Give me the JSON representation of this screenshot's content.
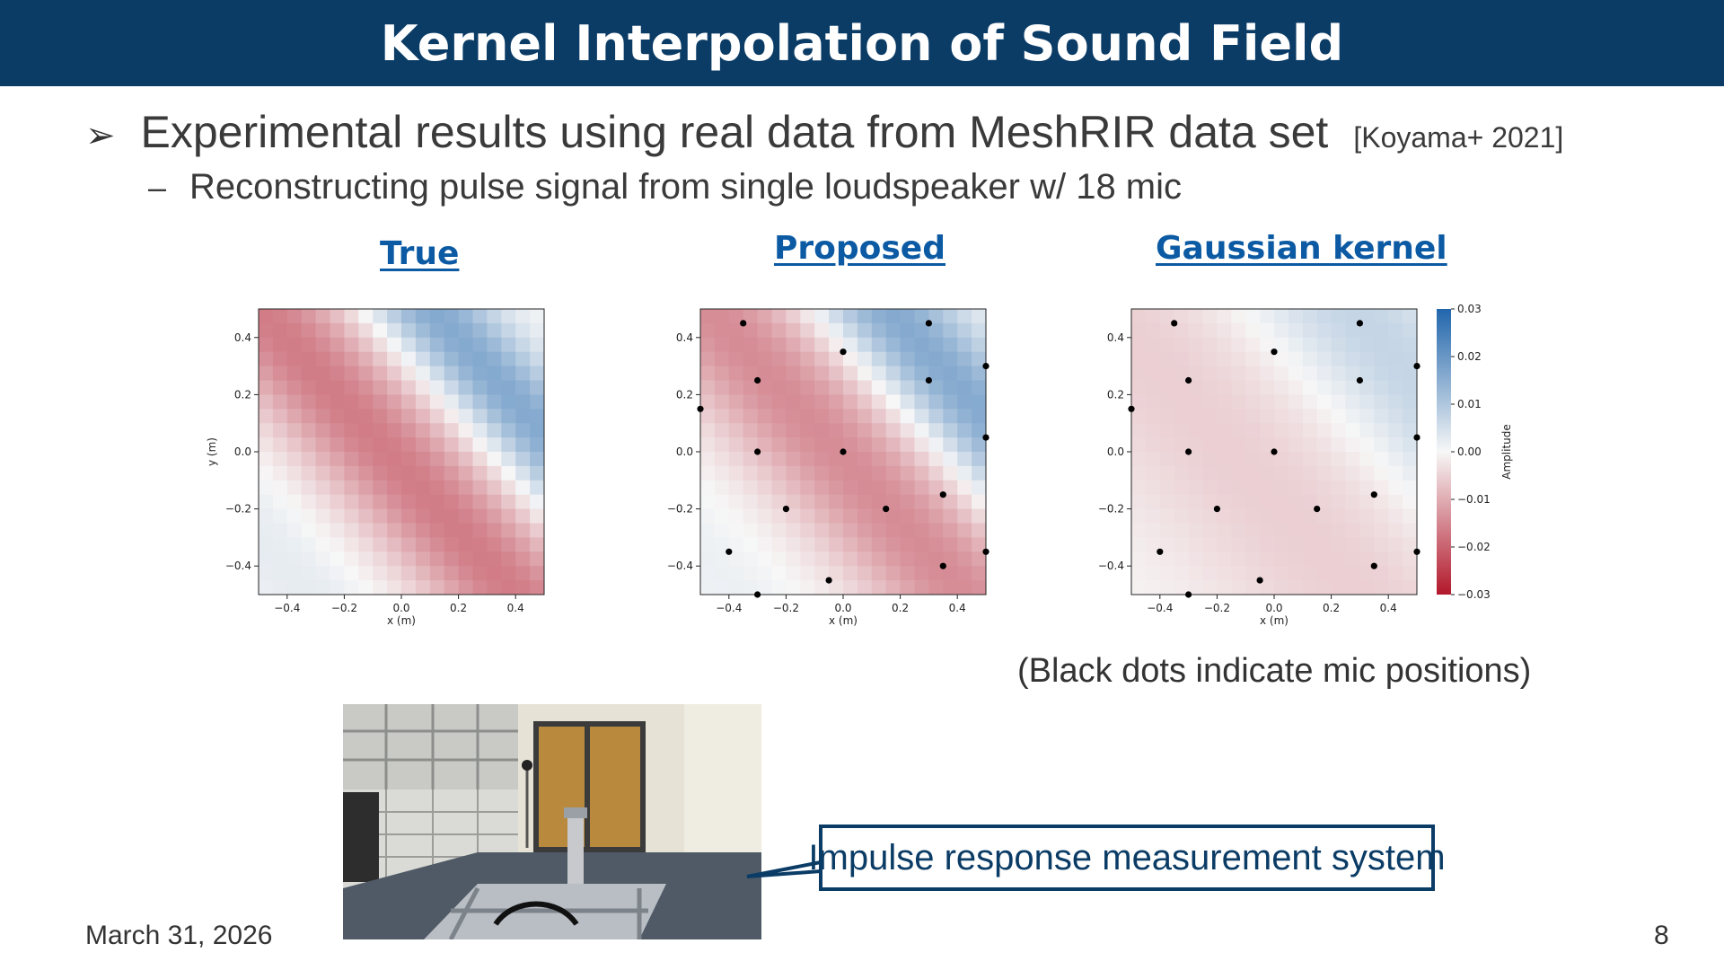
{
  "slide": {
    "title": "Kernel Interpolation of Sound Field",
    "bullet1": {
      "text": "Experimental results using real data from MeshRIR data set",
      "ref": "[Koyama+ 2021]"
    },
    "bullet2": {
      "text": "Reconstructing pulse signal from single loudspeaker w/ 18 mic"
    },
    "panel_titles": [
      "True",
      "Proposed",
      "Gaussian kernel"
    ],
    "note": "(Black dots indicate mic positions)",
    "callout": "Impulse response measurement system",
    "date": "March 31, 2026",
    "page_number": "8"
  },
  "chart_data": [
    {
      "type": "heatmap",
      "title": "True",
      "xlabel": "x (m)",
      "ylabel": "y (m)",
      "xlim": [
        -0.5,
        0.5
      ],
      "ylim": [
        -0.5,
        0.5
      ],
      "xticks": [
        "−0.4",
        "−0.2",
        "0.0",
        "0.2",
        "0.4"
      ],
      "yticks": [
        "0.4",
        "0.2",
        "0.0",
        "−0.2",
        "−0.4"
      ],
      "grid": false,
      "colormap": "RdBu",
      "mic_positions": []
    },
    {
      "type": "heatmap",
      "title": "Proposed",
      "xlabel": "x (m)",
      "ylabel": "",
      "xlim": [
        -0.5,
        0.5
      ],
      "ylim": [
        -0.5,
        0.5
      ],
      "xticks": [
        "−0.4",
        "−0.2",
        "0.0",
        "0.2",
        "0.4"
      ],
      "yticks": [
        "0.4",
        "0.2",
        "0.0",
        "−0.2",
        "−0.4"
      ],
      "grid": false,
      "colormap": "RdBu",
      "mic_positions": [
        [
          -0.35,
          0.45
        ],
        [
          0.3,
          0.45
        ],
        [
          0.0,
          0.35
        ],
        [
          -0.3,
          0.25
        ],
        [
          0.3,
          0.25
        ],
        [
          0.5,
          0.3
        ],
        [
          -0.5,
          0.15
        ],
        [
          -0.3,
          0.0
        ],
        [
          0.0,
          0.0
        ],
        [
          0.5,
          0.05
        ],
        [
          -0.2,
          -0.2
        ],
        [
          0.15,
          -0.2
        ],
        [
          0.35,
          -0.15
        ],
        [
          -0.4,
          -0.35
        ],
        [
          0.5,
          -0.35
        ],
        [
          0.35,
          -0.4
        ],
        [
          -0.05,
          -0.45
        ],
        [
          -0.3,
          -0.5
        ]
      ]
    },
    {
      "type": "heatmap",
      "title": "Gaussian kernel",
      "xlabel": "x (m)",
      "ylabel": "",
      "xlim": [
        -0.5,
        0.5
      ],
      "ylim": [
        -0.5,
        0.5
      ],
      "xticks": [
        "−0.4",
        "−0.2",
        "0.0",
        "0.2",
        "0.4"
      ],
      "yticks": [
        "0.4",
        "0.2",
        "0.0",
        "−0.2",
        "−0.4"
      ],
      "grid": false,
      "colormap": "RdBu",
      "colorbar": {
        "label": "Amplitude",
        "range": [
          -0.03,
          0.03
        ],
        "ticks": [
          "0.03",
          "0.02",
          "0.01",
          "0.00",
          "−0.01",
          "−0.02",
          "−0.03"
        ]
      },
      "mic_positions": [
        [
          -0.35,
          0.45
        ],
        [
          0.3,
          0.45
        ],
        [
          0.0,
          0.35
        ],
        [
          -0.3,
          0.25
        ],
        [
          0.3,
          0.25
        ],
        [
          0.5,
          0.3
        ],
        [
          -0.5,
          0.15
        ],
        [
          -0.3,
          0.0
        ],
        [
          0.0,
          0.0
        ],
        [
          0.5,
          0.05
        ],
        [
          -0.2,
          -0.2
        ],
        [
          0.15,
          -0.2
        ],
        [
          0.35,
          -0.15
        ],
        [
          -0.4,
          -0.35
        ],
        [
          0.5,
          -0.35
        ],
        [
          0.35,
          -0.4
        ],
        [
          -0.05,
          -0.45
        ],
        [
          -0.3,
          -0.5
        ]
      ]
    }
  ]
}
